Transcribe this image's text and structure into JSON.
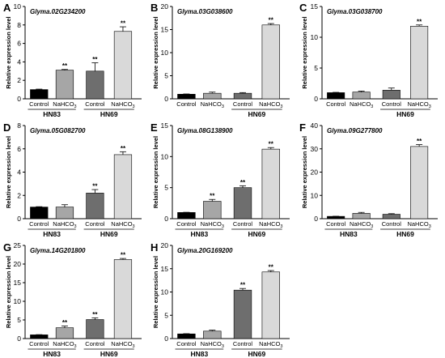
{
  "figure": {
    "background": "#ffffff"
  },
  "colors": {
    "Control_HN83": "#000000",
    "NaHCO3_HN83": "#a6a6a6",
    "Control_HN69": "#6e6e6e",
    "NaHCO3_HN69": "#d9d9d9",
    "axis": "#000000",
    "bar_stroke": "#000000"
  },
  "chart_data": [
    {
      "panel": "A",
      "type": "bar",
      "title": "Glyma.02G234200",
      "ylabel": "Relative expression level",
      "ylim": [
        0,
        10
      ],
      "yticks": [
        0,
        2,
        4,
        6,
        8,
        10
      ],
      "categories": [
        "Control",
        "NaHCO3",
        "Control",
        "NaHCO3"
      ],
      "groups": [
        "HN83",
        "HN69"
      ],
      "values": [
        1.0,
        3.1,
        3.0,
        7.3
      ],
      "errors": [
        0.05,
        0.08,
        0.9,
        0.5
      ],
      "significance": [
        "",
        "**",
        "**",
        "**"
      ]
    },
    {
      "panel": "B",
      "type": "bar",
      "title": "Glyma.03G038600",
      "ylabel": "Relative expression level",
      "ylim": [
        0,
        20
      ],
      "yticks": [
        0,
        5,
        10,
        15,
        20
      ],
      "categories": [
        "Control",
        "NaHCO3",
        "Control",
        "NaHCO3"
      ],
      "groups": [
        "HN69"
      ],
      "values": [
        1.0,
        1.2,
        1.2,
        16.0
      ],
      "errors": [
        0.05,
        0.25,
        0.15,
        0.3
      ],
      "significance": [
        "",
        "",
        "",
        "**"
      ]
    },
    {
      "panel": "C",
      "type": "bar",
      "title": "Glyma.03G038700",
      "ylabel": "Relative expression level",
      "ylim": [
        0,
        15
      ],
      "yticks": [
        0,
        5,
        10,
        15
      ],
      "categories": [
        "Control",
        "NaHCO3",
        "Control",
        "NaHCO3"
      ],
      "groups": [
        "HN69"
      ],
      "values": [
        1.0,
        1.1,
        1.4,
        11.8
      ],
      "errors": [
        0.05,
        0.15,
        0.35,
        0.2
      ],
      "significance": [
        "",
        "",
        "",
        "**"
      ]
    },
    {
      "panel": "D",
      "type": "bar",
      "title": "Glyma.05G082700",
      "ylabel": "Relative expression level",
      "ylim": [
        0,
        8
      ],
      "yticks": [
        0,
        2,
        4,
        6,
        8
      ],
      "categories": [
        "Control",
        "NaHCO3",
        "Control",
        "NaHCO3"
      ],
      "groups": [
        "HN83",
        "HN69"
      ],
      "values": [
        1.0,
        1.0,
        2.2,
        5.5
      ],
      "errors": [
        0.03,
        0.2,
        0.3,
        0.25
      ],
      "significance": [
        "",
        "",
        "**",
        "**"
      ]
    },
    {
      "panel": "E",
      "type": "bar",
      "title": "Glyma.08G138900",
      "ylabel": "Relative expression level",
      "ylim": [
        0,
        15
      ],
      "yticks": [
        0,
        5,
        10,
        15
      ],
      "categories": [
        "Control",
        "NaHCO3",
        "Control",
        "NaHCO3"
      ],
      "groups": [
        "HN83",
        "HN69"
      ],
      "values": [
        1.0,
        2.8,
        5.0,
        11.2
      ],
      "errors": [
        0.03,
        0.3,
        0.3,
        0.25
      ],
      "significance": [
        "",
        "**",
        "**",
        "**"
      ]
    },
    {
      "panel": "F",
      "type": "bar",
      "title": "Glyma.09G277800",
      "ylabel": "Relative expression level",
      "ylim": [
        0,
        40
      ],
      "yticks": [
        0,
        10,
        20,
        30,
        40
      ],
      "categories": [
        "Control",
        "NaHCO3",
        "Control",
        "NaHCO3"
      ],
      "groups": [
        "HN83",
        "HN69"
      ],
      "values": [
        1.0,
        2.3,
        1.9,
        31.0
      ],
      "errors": [
        0.05,
        0.4,
        0.25,
        0.8
      ],
      "significance": [
        "",
        "",
        "",
        "**"
      ]
    },
    {
      "panel": "G",
      "type": "bar",
      "title": "Glyma.14G201800",
      "ylabel": "Relative expression level",
      "ylim": [
        0,
        25
      ],
      "yticks": [
        0,
        5,
        10,
        15,
        20,
        25
      ],
      "categories": [
        "Control",
        "NaHCO3",
        "Control",
        "NaHCO3"
      ],
      "groups": [
        "HN83",
        "HN69"
      ],
      "values": [
        1.0,
        2.9,
        5.1,
        21.2
      ],
      "errors": [
        0.05,
        0.45,
        0.45,
        0.3
      ],
      "significance": [
        "",
        "**",
        "**",
        "**"
      ]
    },
    {
      "panel": "H",
      "type": "bar",
      "title": "Glyma.20G169200",
      "ylabel": "Relative expression level",
      "ylim": [
        0,
        20
      ],
      "yticks": [
        0,
        5,
        10,
        15,
        20
      ],
      "categories": [
        "Control",
        "NaHCO3",
        "Control",
        "NaHCO3"
      ],
      "groups": [
        "HN83",
        "HN69"
      ],
      "values": [
        1.0,
        1.6,
        10.4,
        14.3
      ],
      "errors": [
        0.05,
        0.2,
        0.35,
        0.3
      ],
      "significance": [
        "",
        "",
        "**",
        "**"
      ]
    }
  ]
}
